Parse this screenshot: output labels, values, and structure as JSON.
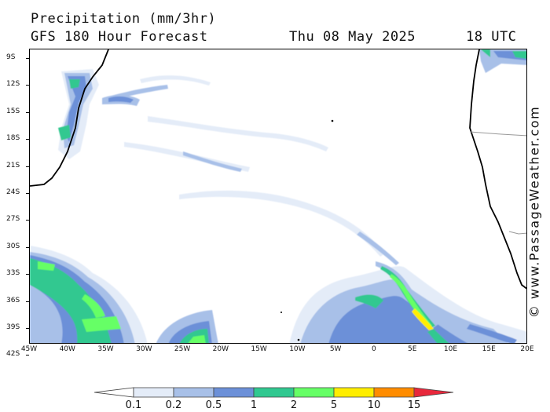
{
  "header": {
    "title": "Precipitation (mm/3hr)",
    "model": "GFS 180 Hour Forecast",
    "date": "Thu 08 May 2025",
    "time": "18 UTC"
  },
  "watermark": "© www.PassageWeather.com",
  "map": {
    "region": "South Atlantic Ocean",
    "lat_range": [
      -43,
      -8
    ],
    "lon_range": [
      -45,
      20
    ],
    "lat_labels": [
      "9S",
      "12S",
      "15S",
      "18S",
      "21S",
      "24S",
      "27S",
      "30S",
      "33S",
      "36S",
      "39S",
      "42S"
    ],
    "lon_labels": [
      "45W",
      "40W",
      "35W",
      "30W",
      "25W",
      "20W",
      "15W",
      "10W",
      "5W",
      "0",
      "5E",
      "10E",
      "15E",
      "20E"
    ]
  },
  "legend": {
    "levels": [
      "0.1",
      "0.2",
      "0.5",
      "1",
      "2",
      "5",
      "10",
      "15"
    ],
    "colors": [
      "#ffffff",
      "#e4ecf8",
      "#a8c0e8",
      "#6c90d8",
      "#30c890",
      "#66ff66",
      "#ffee00",
      "#ff8c00",
      "#e8283c"
    ]
  }
}
